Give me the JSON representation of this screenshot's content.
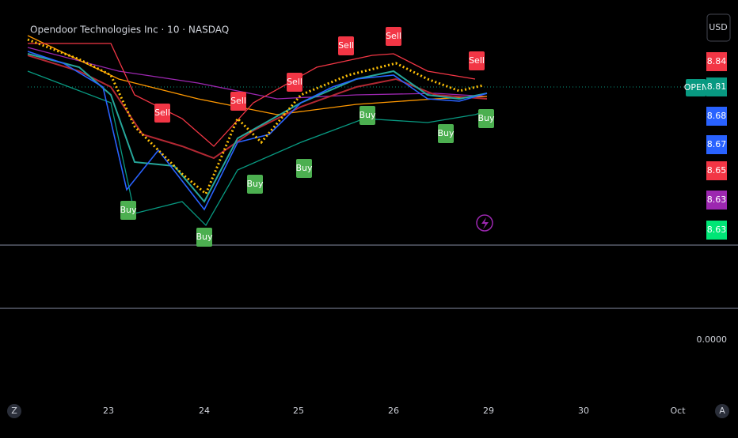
{
  "header": {
    "title": "Opendoor Technologies Inc · 10 · NASDAQ",
    "currency": "USD"
  },
  "price_scale": {
    "open_label": "OPEN",
    "labels": [
      {
        "text": "8.84",
        "color": "#f23645"
      },
      {
        "text": "8.81",
        "color": "#089981"
      },
      {
        "text": "8.68",
        "color": "#2962ff"
      },
      {
        "text": "8.67",
        "color": "#2962ff"
      },
      {
        "text": "8.65",
        "color": "#f23645"
      },
      {
        "text": "8.63",
        "color": "#9c27b0"
      },
      {
        "text": "8.63",
        "color": "#00e676"
      }
    ]
  },
  "signals": [
    {
      "text": "Sell",
      "color": "#f23645"
    },
    {
      "text": "Sell",
      "color": "#f23645"
    },
    {
      "text": "Sell",
      "color": "#f23645"
    },
    {
      "text": "Sell",
      "color": "#f23645"
    },
    {
      "text": "Sell",
      "color": "#f23645"
    },
    {
      "text": "Sell",
      "color": "#f23645"
    },
    {
      "text": "Buy",
      "color": "#4caf50"
    },
    {
      "text": "Buy",
      "color": "#4caf50"
    },
    {
      "text": "Buy",
      "color": "#4caf50"
    },
    {
      "text": "Buy",
      "color": "#4caf50"
    },
    {
      "text": "Buy",
      "color": "#4caf50"
    },
    {
      "text": "Buy",
      "color": "#4caf50"
    },
    {
      "text": "Buy",
      "color": "#4caf50"
    }
  ],
  "indicator_pane": {
    "value": "0.0000"
  },
  "time_axis": {
    "labels": [
      "Z",
      "23",
      "24",
      "25",
      "26",
      "29",
      "30",
      "Oct",
      "A"
    ]
  }
}
